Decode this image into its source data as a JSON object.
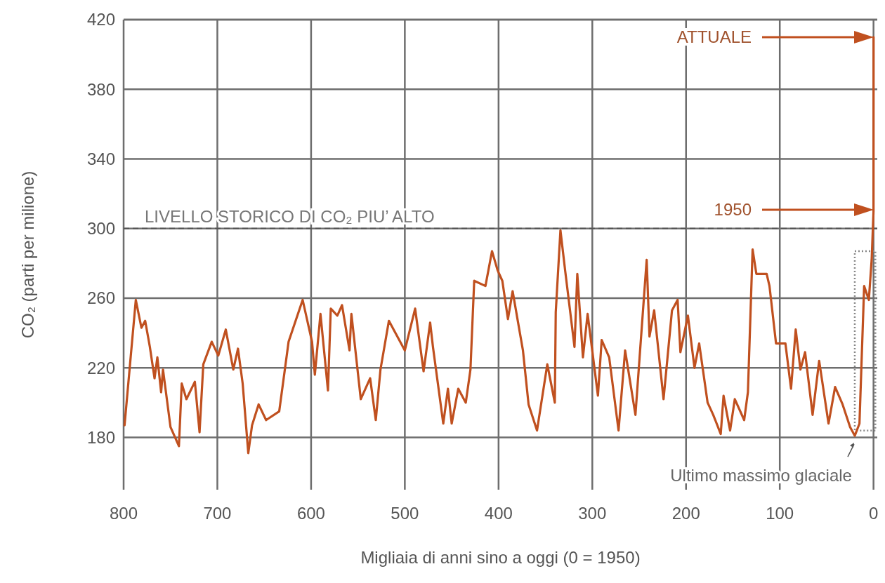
{
  "chart_data": {
    "type": "line",
    "xlabel": "Migliaia di anni sino a oggi (0 = 1950)",
    "ylabel": "CO₂ (parti per milione)",
    "xlim": [
      800,
      -4
    ],
    "ylim": [
      150,
      420
    ],
    "xticks": [
      800,
      700,
      600,
      500,
      400,
      300,
      200,
      100,
      0
    ],
    "yticks": [
      180,
      220,
      260,
      300,
      340,
      380,
      420
    ],
    "grid": true,
    "series": [
      {
        "color": "#c0501f",
        "x": [
          799,
          787,
          781,
          777,
          772,
          767,
          764,
          760,
          758,
          750,
          741,
          738,
          733,
          724,
          719,
          715,
          706,
          699,
          691,
          683,
          678,
          673,
          667,
          663,
          656,
          648,
          634,
          628,
          624,
          609,
          599,
          596,
          590,
          582,
          579,
          572,
          567,
          559,
          557,
          547,
          537,
          531,
          526,
          517,
          500,
          489,
          480,
          473,
          470,
          459,
          454,
          450,
          443,
          435,
          430,
          426,
          414,
          407,
          401,
          396,
          390,
          385,
          374,
          368,
          359,
          348,
          340,
          339,
          334,
          329,
          319,
          316,
          310,
          305,
          294,
          290,
          282,
          272,
          265,
          254,
          242,
          239,
          234,
          224,
          215,
          209,
          206,
          198,
          191,
          186,
          177,
          171,
          163,
          160,
          153,
          148,
          138,
          134,
          129,
          125,
          114,
          111,
          104,
          94,
          88,
          83,
          78,
          73,
          65,
          58,
          48,
          41,
          33,
          25,
          20,
          15,
          10,
          5,
          2,
          0,
          -0.07
        ],
        "values": [
          187,
          259,
          243,
          247,
          232,
          214,
          226,
          206,
          219,
          186,
          175,
          211,
          202,
          212,
          183,
          222,
          235,
          227,
          242,
          219,
          231,
          211,
          171,
          187,
          199,
          190,
          195,
          219,
          235,
          259,
          235,
          216,
          251,
          207,
          254,
          250,
          256,
          230,
          251,
          202,
          214,
          190,
          219,
          247,
          230,
          254,
          218,
          246,
          232,
          188,
          208,
          188,
          208,
          200,
          219,
          270,
          267,
          287,
          276,
          270,
          248,
          264,
          230,
          199,
          184,
          222,
          200,
          252,
          299,
          276,
          232,
          274,
          226,
          251,
          204,
          236,
          226,
          184,
          230,
          193,
          282,
          238,
          253,
          202,
          253,
          259,
          229,
          250,
          220,
          234,
          200,
          193,
          182,
          204,
          184,
          202,
          190,
          206,
          288,
          274,
          274,
          267,
          234,
          234,
          208,
          242,
          219,
          229,
          193,
          224,
          188,
          209,
          199,
          186,
          181,
          188,
          267,
          259,
          282,
          310,
          410
        ]
      }
    ],
    "ref_lines": [
      {
        "axis": "y",
        "value": 300,
        "label": "LIVELLO STORICO DI CO₂ PIU’ ALTO",
        "color": "#555555",
        "line_style": "dashed"
      }
    ],
    "annotations": [
      "ATTUALE",
      "1950",
      {
        "text": "Ultimo massimo glaciale",
        "x": 20,
        "y": 181
      }
    ]
  }
}
